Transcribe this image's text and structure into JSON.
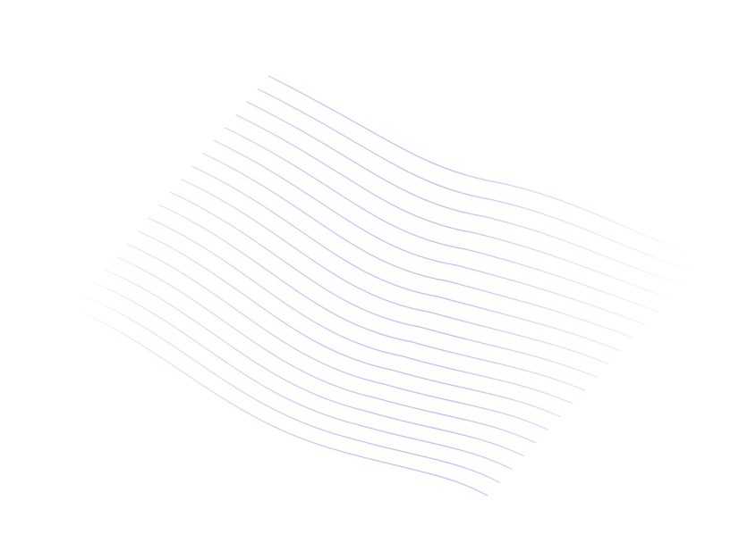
{
  "background": {
    "color": "#ffffff",
    "pattern": "wave-lines",
    "line_count": 19,
    "colors": {
      "blue": "#5b7ee0",
      "pink": "#d8a8c4",
      "lavender": "#9aa6e8"
    }
  }
}
